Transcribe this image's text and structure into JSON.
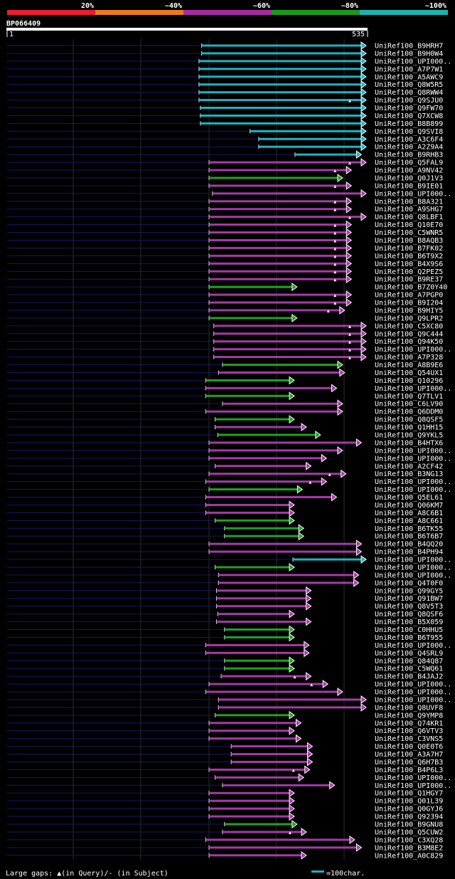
{
  "chart_data": {
    "type": "blast-alignment-overview",
    "query_id": "BP066409",
    "query_start": "1",
    "query_end": "535",
    "query_length": 535,
    "legend": {
      "scale_labels": [
        "20%",
        "~40%",
        "~60%",
        "~80%",
        "~100%"
      ],
      "scale_colors": [
        "#ee1c2c",
        "#ee7a1c",
        "#a52aa5",
        "#1a9a1a",
        "#1ab4b4"
      ],
      "footer_left": "Large gaps: ▲(in Query)/- (in Subject)",
      "footer_right": "=100char.",
      "footer_swatch_color": "#1ab4b4"
    },
    "category_colors": {
      "cyan": "#1ab4c4",
      "magenta": "#a53aa8",
      "green": "#22a022"
    },
    "hits": [
      {
        "label": "UniRef100_B9HRH7",
        "color": "cyan",
        "start": 291,
        "end": 535,
        "gap": false
      },
      {
        "label": "UniRef100_B9H0W4",
        "color": "cyan",
        "start": 291,
        "end": 535,
        "gap": false
      },
      {
        "label": "UniRef100_UPI000..",
        "color": "cyan",
        "start": 287,
        "end": 535,
        "gap": false
      },
      {
        "label": "UniRef100_A7P7W1",
        "color": "cyan",
        "start": 287,
        "end": 535,
        "gap": false
      },
      {
        "label": "UniRef100_A5AWC9",
        "color": "cyan",
        "start": 287,
        "end": 535,
        "gap": false
      },
      {
        "label": "UniRef100_Q8W5R5",
        "color": "cyan",
        "start": 287,
        "end": 535,
        "gap": false
      },
      {
        "label": "UniRef100_Q8RWW4",
        "color": "cyan",
        "start": 287,
        "end": 535,
        "gap": false
      },
      {
        "label": "UniRef100_Q9SJU0",
        "color": "cyan",
        "start": 287,
        "end": 535,
        "gap": true
      },
      {
        "label": "UniRef100_Q9FW70",
        "color": "cyan",
        "start": 289,
        "end": 535,
        "gap": false
      },
      {
        "label": "UniRef100_Q7XCW8",
        "color": "cyan",
        "start": 289,
        "end": 535,
        "gap": false
      },
      {
        "label": "UniRef100_B8B899",
        "color": "cyan",
        "start": 289,
        "end": 535,
        "gap": false
      },
      {
        "label": "UniRef100_Q9SVI8",
        "color": "cyan",
        "start": 363,
        "end": 535,
        "gap": false
      },
      {
        "label": "UniRef100_A3C6F4",
        "color": "cyan",
        "start": 376,
        "end": 535,
        "gap": false
      },
      {
        "label": "UniRef100_A2Z9A4",
        "color": "cyan",
        "start": 376,
        "end": 535,
        "gap": false
      },
      {
        "label": "UniRef100_B9RHB3",
        "color": "cyan",
        "start": 430,
        "end": 528,
        "gap": false
      },
      {
        "label": "UniRef100_Q5FAL9",
        "color": "magenta",
        "start": 302,
        "end": 535,
        "gap": true
      },
      {
        "label": "UniRef100_A9NV42",
        "color": "magenta",
        "start": 302,
        "end": 513,
        "gap": true
      },
      {
        "label": "UniRef100_Q0J1V3",
        "color": "green",
        "start": 302,
        "end": 500,
        "gap": false
      },
      {
        "label": "UniRef100_B9IE01",
        "color": "magenta",
        "start": 302,
        "end": 513,
        "gap": true
      },
      {
        "label": "UniRef100_UPI000..",
        "color": "magenta",
        "start": 307,
        "end": 535,
        "gap": false
      },
      {
        "label": "UniRef100_B8A321",
        "color": "magenta",
        "start": 302,
        "end": 513,
        "gap": true
      },
      {
        "label": "UniRef100_A9SHG7",
        "color": "magenta",
        "start": 302,
        "end": 513,
        "gap": true
      },
      {
        "label": "UniRef100_Q8LBF1",
        "color": "magenta",
        "start": 302,
        "end": 535,
        "gap": true
      },
      {
        "label": "UniRef100_Q10E70",
        "color": "magenta",
        "start": 302,
        "end": 513,
        "gap": true
      },
      {
        "label": "UniRef100_C5WNR5",
        "color": "magenta",
        "start": 302,
        "end": 513,
        "gap": true
      },
      {
        "label": "UniRef100_B8AQB3",
        "color": "magenta",
        "start": 302,
        "end": 513,
        "gap": true
      },
      {
        "label": "UniRef100_B7FK02",
        "color": "magenta",
        "start": 302,
        "end": 513,
        "gap": true
      },
      {
        "label": "UniRef100_B6T9X2",
        "color": "magenta",
        "start": 302,
        "end": 513,
        "gap": true
      },
      {
        "label": "UniRef100_B4X9S6",
        "color": "magenta",
        "start": 302,
        "end": 513,
        "gap": true
      },
      {
        "label": "UniRef100_Q2PEZ5",
        "color": "magenta",
        "start": 302,
        "end": 513,
        "gap": true
      },
      {
        "label": "UniRef100_B9RE37",
        "color": "magenta",
        "start": 302,
        "end": 513,
        "gap": true
      },
      {
        "label": "UniRef100_B7Z0Y40",
        "color": "green",
        "start": 302,
        "end": 432,
        "gap": false
      },
      {
        "label": "UniRef100_A7PGP0",
        "color": "magenta",
        "start": 302,
        "end": 513,
        "gap": true
      },
      {
        "label": "UniRef100_B9I204",
        "color": "magenta",
        "start": 302,
        "end": 513,
        "gap": true
      },
      {
        "label": "UniRef100_B9HIY5",
        "color": "magenta",
        "start": 302,
        "end": 503,
        "gap": true
      },
      {
        "label": "UniRef100_Q9LPR2",
        "color": "green",
        "start": 302,
        "end": 432,
        "gap": false
      },
      {
        "label": "UniRef100_C5XC80",
        "color": "magenta",
        "start": 309,
        "end": 535,
        "gap": true
      },
      {
        "label": "UniRef100_Q9C444",
        "color": "magenta",
        "start": 309,
        "end": 535,
        "gap": true
      },
      {
        "label": "UniRef100_Q94K50",
        "color": "magenta",
        "start": 309,
        "end": 535,
        "gap": true
      },
      {
        "label": "UniRef100_UPI000..",
        "color": "magenta",
        "start": 309,
        "end": 535,
        "gap": true
      },
      {
        "label": "UniRef100_A7P328",
        "color": "magenta",
        "start": 309,
        "end": 535,
        "gap": true
      },
      {
        "label": "UniRef100_A8B9E6",
        "color": "green",
        "start": 322,
        "end": 500,
        "gap": false
      },
      {
        "label": "UniRef100_Q54UX1",
        "color": "magenta",
        "start": 316,
        "end": 503,
        "gap": false
      },
      {
        "label": "UniRef100_Q10296",
        "color": "green",
        "start": 297,
        "end": 428,
        "gap": false
      },
      {
        "label": "UniRef100_UPI000..",
        "color": "magenta",
        "start": 297,
        "end": 491,
        "gap": false
      },
      {
        "label": "UniRef100_Q7TLV1",
        "color": "green",
        "start": 297,
        "end": 428,
        "gap": false
      },
      {
        "label": "UniRef100_C6LV90",
        "color": "magenta",
        "start": 322,
        "end": 500,
        "gap": false
      },
      {
        "label": "UniRef100_Q6DDM0",
        "color": "magenta",
        "start": 297,
        "end": 500,
        "gap": false
      },
      {
        "label": "UniRef100_Q8QSF5",
        "color": "green",
        "start": 311,
        "end": 428,
        "gap": false
      },
      {
        "label": "UniRef100_Q1HH15",
        "color": "magenta",
        "start": 311,
        "end": 446,
        "gap": false
      },
      {
        "label": "UniRef100_Q9YKL5",
        "color": "green",
        "start": 315,
        "end": 467,
        "gap": false
      },
      {
        "label": "UniRef100_B4HTX6",
        "color": "magenta",
        "start": 302,
        "end": 528,
        "gap": false
      },
      {
        "label": "UniRef100_UPI000..",
        "color": "magenta",
        "start": 302,
        "end": 500,
        "gap": false
      },
      {
        "label": "UniRef100_UPI000..",
        "color": "magenta",
        "start": 302,
        "end": 476,
        "gap": false
      },
      {
        "label": "UniRef100_A2CF42",
        "color": "magenta",
        "start": 311,
        "end": 453,
        "gap": false
      },
      {
        "label": "UniRef100_B3NG13",
        "color": "magenta",
        "start": 302,
        "end": 505,
        "gap": true
      },
      {
        "label": "UniRef100_UPI000..",
        "color": "magenta",
        "start": 297,
        "end": 476,
        "gap": true
      },
      {
        "label": "UniRef100_UPI000..",
        "color": "green",
        "start": 302,
        "end": 440,
        "gap": false
      },
      {
        "label": "UniRef100_Q5EL61",
        "color": "magenta",
        "start": 297,
        "end": 491,
        "gap": false
      },
      {
        "label": "UniRef100_Q06KM7",
        "color": "magenta",
        "start": 297,
        "end": 428,
        "gap": false
      },
      {
        "label": "UniRef100_A8C6B1",
        "color": "magenta",
        "start": 297,
        "end": 428,
        "gap": false
      },
      {
        "label": "UniRef100_A8C661",
        "color": "green",
        "start": 311,
        "end": 428,
        "gap": false
      },
      {
        "label": "UniRef100_B6TK55",
        "color": "green",
        "start": 325,
        "end": 442,
        "gap": false
      },
      {
        "label": "UniRef100_B6T6B7",
        "color": "green",
        "start": 325,
        "end": 442,
        "gap": false
      },
      {
        "label": "UniRef100_B4QQ20",
        "color": "magenta",
        "start": 302,
        "end": 528,
        "gap": false
      },
      {
        "label": "UniRef100_B4PH94",
        "color": "magenta",
        "start": 302,
        "end": 528,
        "gap": false
      },
      {
        "label": "UniRef100_UPI000..",
        "color": "cyan",
        "start": 427,
        "end": 535,
        "gap": false
      },
      {
        "label": "UniRef100_UPI000..",
        "color": "green",
        "start": 311,
        "end": 428,
        "gap": false
      },
      {
        "label": "UniRef100_UPI000..",
        "color": "magenta",
        "start": 316,
        "end": 524,
        "gap": false
      },
      {
        "label": "UniRef100_Q4T0F0",
        "color": "magenta",
        "start": 316,
        "end": 524,
        "gap": false
      },
      {
        "label": "UniRef100_Q99GY5",
        "color": "magenta",
        "start": 313,
        "end": 453,
        "gap": false
      },
      {
        "label": "UniRef100_Q91BW7",
        "color": "magenta",
        "start": 313,
        "end": 453,
        "gap": false
      },
      {
        "label": "UniRef100_Q8V5T3",
        "color": "magenta",
        "start": 313,
        "end": 453,
        "gap": false
      },
      {
        "label": "UniRef100_Q8QSF6",
        "color": "magenta",
        "start": 315,
        "end": 428,
        "gap": false
      },
      {
        "label": "UniRef100_B5X059",
        "color": "magenta",
        "start": 313,
        "end": 453,
        "gap": false
      },
      {
        "label": "UniRef100_C0HHU5",
        "color": "green",
        "start": 325,
        "end": 428,
        "gap": false
      },
      {
        "label": "UniRef100_B6T955",
        "color": "green",
        "start": 325,
        "end": 428,
        "gap": false
      },
      {
        "label": "UniRef100_UPI000..",
        "color": "magenta",
        "start": 297,
        "end": 450,
        "gap": false
      },
      {
        "label": "UniRef100_Q4SRL9",
        "color": "magenta",
        "start": 297,
        "end": 450,
        "gap": false
      },
      {
        "label": "UniRef100_Q84Q87",
        "color": "green",
        "start": 325,
        "end": 428,
        "gap": false
      },
      {
        "label": "UniRef100_C5WQ61",
        "color": "green",
        "start": 325,
        "end": 428,
        "gap": false
      },
      {
        "label": "UniRef100_B4JAJ2",
        "color": "magenta",
        "start": 320,
        "end": 453,
        "gap": true
      },
      {
        "label": "UniRef100_UPI000..",
        "color": "magenta",
        "start": 302,
        "end": 478,
        "gap": true
      },
      {
        "label": "UniRef100_UPI000..",
        "color": "magenta",
        "start": 297,
        "end": 500,
        "gap": false
      },
      {
        "label": "UniRef100_UPI000..",
        "color": "magenta",
        "start": 316,
        "end": 535,
        "gap": false
      },
      {
        "label": "UniRef100_Q8UVF8",
        "color": "magenta",
        "start": 316,
        "end": 535,
        "gap": false
      },
      {
        "label": "UniRef100_Q9YMP8",
        "color": "green",
        "start": 311,
        "end": 428,
        "gap": false
      },
      {
        "label": "UniRef100_Q74KR1",
        "color": "magenta",
        "start": 302,
        "end": 438,
        "gap": false
      },
      {
        "label": "UniRef100_Q6VTV3",
        "color": "magenta",
        "start": 302,
        "end": 428,
        "gap": false
      },
      {
        "label": "UniRef100_C3VNS5",
        "color": "magenta",
        "start": 302,
        "end": 438,
        "gap": false
      },
      {
        "label": "UniRef100_Q0E0T6",
        "color": "magenta",
        "start": 335,
        "end": 455,
        "gap": false
      },
      {
        "label": "UniRef100_A3A7H7",
        "color": "magenta",
        "start": 335,
        "end": 455,
        "gap": false
      },
      {
        "label": "UniRef100_Q6H7B3",
        "color": "magenta",
        "start": 335,
        "end": 455,
        "gap": false
      },
      {
        "label": "UniRef100_B4P6L3",
        "color": "magenta",
        "start": 302,
        "end": 451,
        "gap": true
      },
      {
        "label": "UniRef100_UPI000..",
        "color": "magenta",
        "start": 311,
        "end": 442,
        "gap": false
      },
      {
        "label": "UniRef100_UPI000..",
        "color": "magenta",
        "start": 322,
        "end": 488,
        "gap": false
      },
      {
        "label": "UniRef100_Q1HGY7",
        "color": "magenta",
        "start": 302,
        "end": 428,
        "gap": false
      },
      {
        "label": "UniRef100_Q01L39",
        "color": "magenta",
        "start": 302,
        "end": 428,
        "gap": false
      },
      {
        "label": "UniRef100_Q0GYJ6",
        "color": "magenta",
        "start": 302,
        "end": 428,
        "gap": false
      },
      {
        "label": "UniRef100_Q92394",
        "color": "magenta",
        "start": 302,
        "end": 428,
        "gap": false
      },
      {
        "label": "UniRef100_B9GNU8",
        "color": "green",
        "start": 325,
        "end": 432,
        "gap": false
      },
      {
        "label": "UniRef100_Q5CUW2",
        "color": "magenta",
        "start": 322,
        "end": 446,
        "gap": true
      },
      {
        "label": "UniRef100_C3XQ28",
        "color": "magenta",
        "start": 297,
        "end": 518,
        "gap": false
      },
      {
        "label": "UniRef100_B3M8E2",
        "color": "magenta",
        "start": 302,
        "end": 528,
        "gap": false
      },
      {
        "label": "UniRef100_A0C829",
        "color": "magenta",
        "start": 302,
        "end": 446,
        "gap": false
      }
    ]
  }
}
